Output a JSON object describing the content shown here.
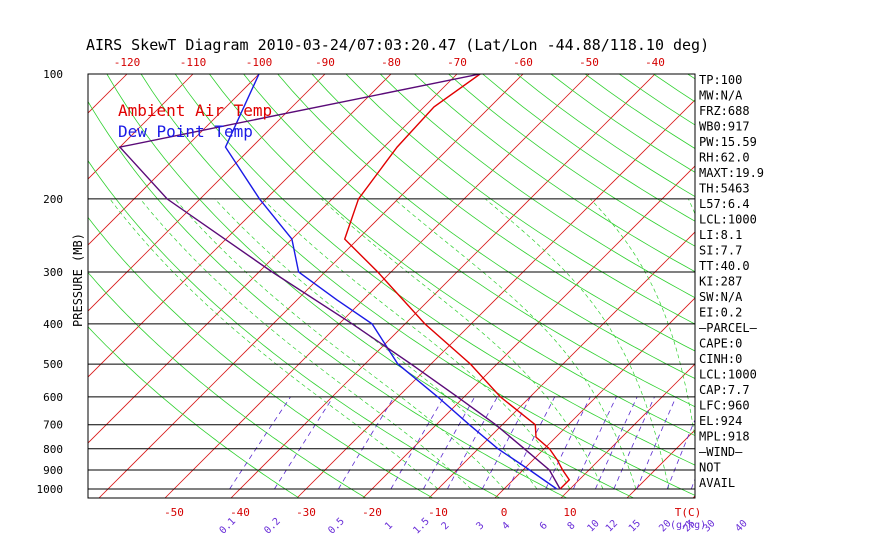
{
  "title": "AIRS SkewT Diagram 2010-03-24/07:03:20.47 (Lat/Lon -44.88/118.10 deg)",
  "chart_data": {
    "type": "line",
    "ylabel": "PRESSURE (MB)",
    "pressure_ticks": [
      100,
      200,
      300,
      400,
      500,
      600,
      700,
      800,
      900,
      1000
    ],
    "top_temp_ticks": [
      -120,
      -110,
      -100,
      -90,
      -80,
      -70,
      -60,
      -50,
      -40
    ],
    "bottom_temp_ticks": [
      -50,
      -40,
      -30,
      -20,
      -10,
      0,
      10
    ],
    "bottom_temp_unit": "T(C)",
    "mixing_ratio_ticks": [
      "0.1",
      "0.2",
      "0.5",
      "1",
      "1.5",
      "2",
      "3",
      "4",
      "6",
      "8",
      "10",
      "12",
      "15",
      "20",
      "25",
      "30",
      "40"
    ],
    "mixing_ratio_unit": "(g/kg)",
    "series": [
      {
        "name": "Ambient Air Temp",
        "color": "#e00000",
        "points": [
          {
            "p": 1000,
            "t": 8.5
          },
          {
            "p": 950,
            "t": 8.5
          },
          {
            "p": 900,
            "t": 6.0
          },
          {
            "p": 850,
            "t": 3.6
          },
          {
            "p": 800,
            "t": 0.8
          },
          {
            "p": 750,
            "t": -3.0
          },
          {
            "p": 700,
            "t": -5.0
          },
          {
            "p": 600,
            "t": -14.5
          },
          {
            "p": 500,
            "t": -24.0
          },
          {
            "p": 400,
            "t": -37.0
          },
          {
            "p": 300,
            "t": -52.0
          },
          {
            "p": 250,
            "t": -62.0
          },
          {
            "p": 200,
            "t": -66.0
          },
          {
            "p": 150,
            "t": -68.0
          },
          {
            "p": 120,
            "t": -68.5
          },
          {
            "p": 100,
            "t": -66.5
          }
        ]
      },
      {
        "name": "Dew Point Temp",
        "color": "#1a1ae6",
        "points": [
          {
            "p": 1000,
            "t": 8.0
          },
          {
            "p": 900,
            "t": 1.0
          },
          {
            "p": 800,
            "t": -7.0
          },
          {
            "p": 700,
            "t": -15.0
          },
          {
            "p": 600,
            "t": -24.0
          },
          {
            "p": 500,
            "t": -35.0
          },
          {
            "p": 400,
            "t": -45.0
          },
          {
            "p": 350,
            "t": -54.0
          },
          {
            "p": 300,
            "t": -64.0
          },
          {
            "p": 250,
            "t": -70.0
          },
          {
            "p": 200,
            "t": -81.0
          },
          {
            "p": 150,
            "t": -94.0
          },
          {
            "p": 100,
            "t": -100.0
          }
        ]
      },
      {
        "name": "parcel",
        "color": "#5a0a78",
        "points": [
          {
            "p": 1000,
            "t": 8.5
          },
          {
            "p": 900,
            "t": 4.0
          },
          {
            "p": 800,
            "t": -3.0
          },
          {
            "p": 700,
            "t": -11.0
          },
          {
            "p": 600,
            "t": -21.0
          },
          {
            "p": 500,
            "t": -33.0
          },
          {
            "p": 400,
            "t": -48.0
          },
          {
            "p": 300,
            "t": -68.0
          },
          {
            "p": 200,
            "t": -95.0
          },
          {
            "p": 150,
            "t": -110.0
          },
          {
            "p": 100,
            "t": -66.5
          }
        ]
      }
    ],
    "indices": [
      "TP:100",
      "MW:N/A",
      "FRZ:688",
      "WB0:917",
      "PW:15.59",
      "RH:62.0",
      "MAXT:19.9",
      "TH:5463",
      "L57:6.4",
      "LCL:1000",
      "LI:8.1",
      "SI:7.7",
      "TT:40.0",
      "KI:287",
      "SW:N/A",
      "EI:0.2",
      "—PARCEL—",
      "CAPE:0",
      "CINH:0",
      "LCL:1000",
      "CAP:7.7",
      "LFC:960",
      "EL:924",
      "MPL:918",
      "—WIND—",
      "NOT",
      "AVAIL"
    ]
  }
}
